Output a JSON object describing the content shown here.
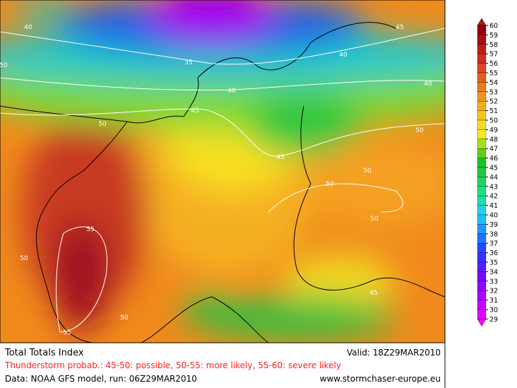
{
  "map": {
    "contour_labels": [
      "40",
      "45",
      "35",
      "40",
      "50",
      "40",
      "40",
      "45",
      "50",
      "50",
      "45",
      "50",
      "50",
      "50",
      "55",
      "50",
      "45",
      "50",
      "55"
    ]
  },
  "colorbar": {
    "levels": [
      60,
      59,
      58,
      57,
      56,
      55,
      54,
      53,
      52,
      51,
      50,
      49,
      48,
      47,
      46,
      45,
      44,
      43,
      42,
      41,
      40,
      39,
      38,
      37,
      36,
      35,
      34,
      33,
      32,
      31,
      30,
      29
    ]
  },
  "footer": {
    "title": "Total Totals Index",
    "valid": "Valid: 18Z29MAR2010",
    "legend": "Thunderstorm probab.: 45-50: possible, 50-55: more likely, 55-60: severe likely",
    "source": "Data: NOAA GFS model, run: 06Z29MAR2010",
    "website": "www.stormchaser-europe.eu"
  }
}
